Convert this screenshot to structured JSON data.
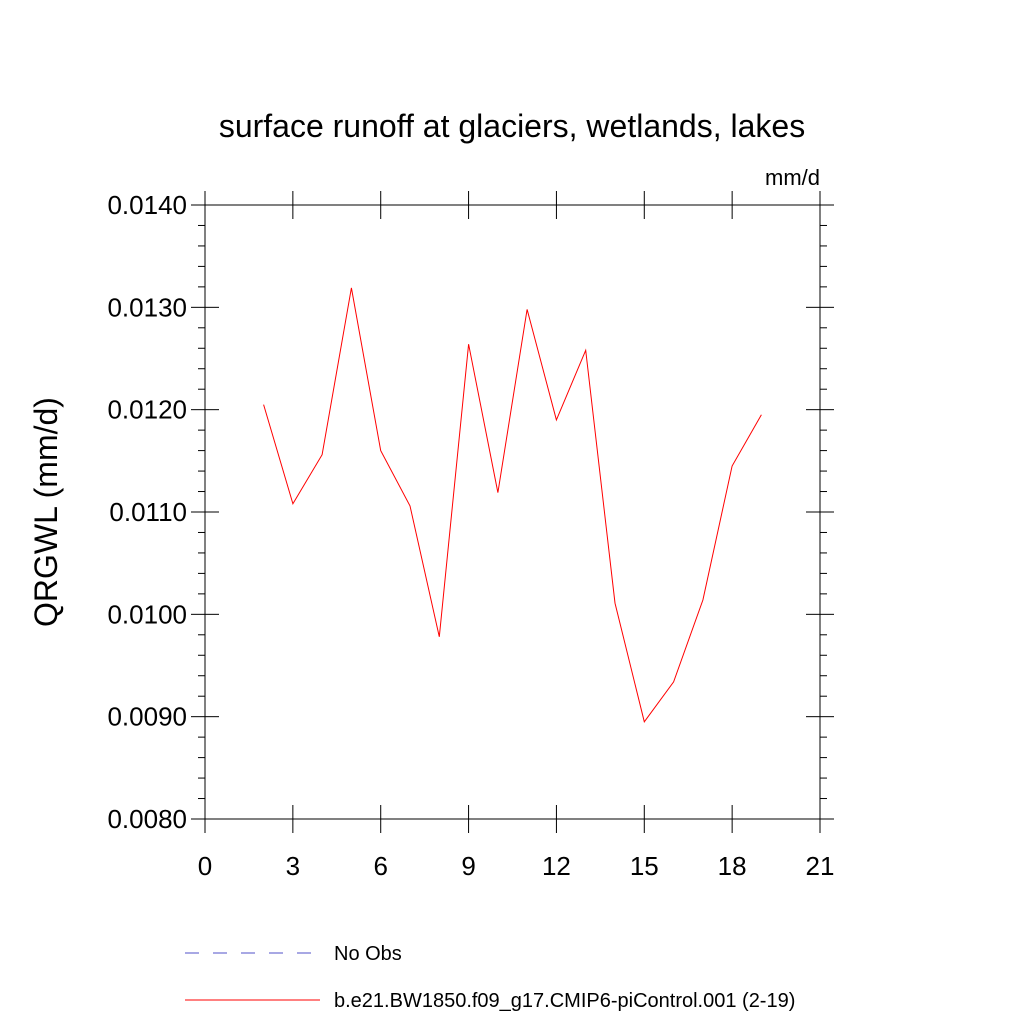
{
  "chart_data": {
    "type": "line",
    "title": "surface runoff at glaciers, wetlands, lakes",
    "units": "mm/d",
    "ylabel": "QRGWL  (mm/d)",
    "xlabel": "",
    "xlim": [
      0,
      21
    ],
    "ylim": [
      0.008,
      0.014
    ],
    "x_ticks": [
      0,
      3,
      6,
      9,
      12,
      15,
      18,
      21
    ],
    "x_tick_labels": [
      "0",
      "3",
      "6",
      "9",
      "12",
      "15",
      "18",
      "21"
    ],
    "y_ticks": [
      0.008,
      0.009,
      0.01,
      0.011,
      0.012,
      0.013,
      0.014
    ],
    "y_tick_labels": [
      "0.0080",
      "0.0090",
      "0.0100",
      "0.0110",
      "0.0120",
      "0.0130",
      "0.0140"
    ],
    "grid": false,
    "legend_placement": "bottom",
    "series": [
      {
        "name": "No Obs",
        "color": "#5050c8",
        "dash": "dashed",
        "x": [],
        "y": []
      },
      {
        "name": "b.e21.BW1850.f09_g17.CMIP6-piControl.001 (2-19)",
        "color": "#ff0000",
        "dash": "solid",
        "x": [
          2,
          3,
          4,
          5,
          6,
          7,
          8,
          9,
          10,
          11,
          12,
          13,
          14,
          15,
          16,
          17,
          18,
          19
        ],
        "y": [
          0.01205,
          0.01108,
          0.01156,
          0.01319,
          0.0116,
          0.01106,
          0.00978,
          0.01264,
          0.01119,
          0.01298,
          0.0119,
          0.01258,
          0.01011,
          0.00895,
          0.00934,
          0.01014,
          0.01145,
          0.01195
        ]
      }
    ]
  }
}
